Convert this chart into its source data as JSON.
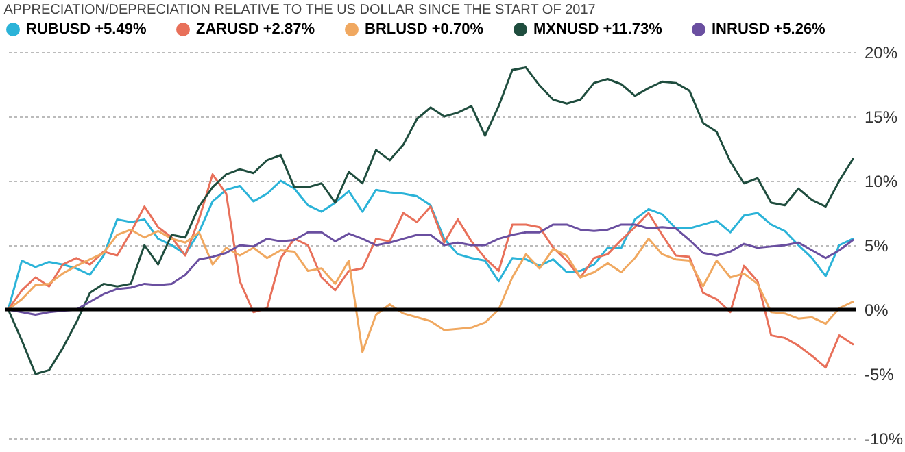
{
  "chart_data": {
    "type": "line",
    "title": "APPRECIATION/DEPRECIATION RELATIVE TO THE US DOLLAR SINCE THE START OF 2017",
    "categories": [
      null,
      null,
      null,
      null,
      null,
      null,
      null,
      null,
      null,
      null,
      null,
      null,
      null,
      null,
      null,
      null,
      null,
      null,
      null,
      null,
      null,
      null,
      null,
      null,
      null,
      null,
      null,
      null,
      null,
      null,
      null,
      null,
      null,
      null,
      null,
      null,
      null,
      null,
      null,
      null,
      null,
      null,
      null,
      null,
      null,
      null,
      null,
      null,
      null,
      null,
      null,
      null,
      null,
      null,
      null,
      null,
      null,
      null,
      null,
      null,
      null,
      null,
      null
    ],
    "series": [
      {
        "name": "RUBUSD +5.49%",
        "color": "#2bb3d8",
        "values": [
          0,
          3.8,
          3.3,
          3.7,
          3.5,
          3.2,
          2.7,
          4.2,
          7,
          6.8,
          7,
          5.5,
          5,
          4.3,
          6,
          8.4,
          9.3,
          9.6,
          8.4,
          9,
          10,
          9.4,
          8.1,
          7.6,
          8.3,
          9.2,
          7.6,
          9.3,
          9.1,
          9,
          8.8,
          8.1,
          5.5,
          4.3,
          4,
          3.8,
          2.2,
          4,
          3.9,
          3.4,
          3.9,
          2.9,
          3,
          3.5,
          4.8,
          4.8,
          7,
          7.8,
          7.4,
          6.3,
          6.3,
          6.6,
          6.9,
          6,
          7.3,
          7.5,
          6.6,
          6.1,
          5,
          4,
          2.6,
          5,
          5.5
        ]
      },
      {
        "name": "ZARUSD +2.87%",
        "color": "#e8705a",
        "values": [
          0,
          1.5,
          2.5,
          1.8,
          3.5,
          4,
          3.5,
          4.5,
          4.2,
          6,
          8,
          6.4,
          5.6,
          4.2,
          7,
          10.5,
          9,
          2.2,
          -0.2,
          0.1,
          4,
          5.5,
          5,
          2.5,
          1.5,
          3,
          3.2,
          5.5,
          5.3,
          7.5,
          6.8,
          8,
          5.2,
          7,
          5.3,
          4,
          3,
          6.6,
          6.6,
          6.4,
          4.8,
          3.8,
          2.5,
          4,
          4.3,
          5.4,
          6.4,
          7.5,
          5.8,
          4.2,
          4.1,
          1.3,
          0.8,
          -0.2,
          3.4,
          2.2,
          -2,
          -2.2,
          -2.8,
          -3.6,
          -4.5,
          -2,
          -2.7
        ]
      },
      {
        "name": "BRLUSD +0.70%",
        "color": "#f0a860",
        "values": [
          0,
          0.8,
          1.9,
          2,
          2.8,
          3.4,
          3.9,
          4.4,
          5.8,
          6.2,
          5.6,
          6.1,
          5.5,
          5.2,
          6,
          3.5,
          4.8,
          4.2,
          4.8,
          4,
          4.6,
          4.5,
          3,
          3.2,
          2,
          3.8,
          -3.3,
          -0.4,
          0.4,
          -0.3,
          -0.6,
          -0.9,
          -1.6,
          -1.5,
          -1.4,
          -1,
          0,
          2.5,
          4.3,
          3.2,
          4.7,
          4.2,
          2.5,
          2.9,
          3.6,
          2.9,
          4,
          5.5,
          4.3,
          3.9,
          3.8,
          1.8,
          3.8,
          2.5,
          2.8,
          2,
          -0.2,
          -0.3,
          -0.7,
          -0.6,
          -1.1,
          0.1,
          0.6
        ]
      },
      {
        "name": "MXNUSD +11.73%",
        "color": "#1f4d3e",
        "values": [
          0,
          -2.4,
          -5,
          -4.7,
          -3,
          -1,
          1.3,
          2,
          1.8,
          2,
          5,
          3.5,
          5.8,
          5.6,
          8,
          9.5,
          10.5,
          10.9,
          10.6,
          11.6,
          12,
          9.5,
          9.5,
          9.8,
          8.3,
          10.7,
          9.8,
          12.4,
          11.6,
          12.8,
          14.8,
          15.7,
          15,
          15.3,
          15.8,
          13.5,
          15.8,
          18.6,
          18.8,
          17.4,
          16.3,
          16,
          16.3,
          17.6,
          17.9,
          17.5,
          16.6,
          17.2,
          17.7,
          17.6,
          17,
          14.5,
          13.8,
          11.5,
          9.8,
          10.2,
          8.3,
          8.1,
          9.4,
          8.5,
          8,
          10,
          11.7
        ]
      },
      {
        "name": "INRUSD +5.26%",
        "color": "#6a4fa0",
        "values": [
          0,
          -0.2,
          -0.4,
          -0.2,
          -0.1,
          0,
          0.6,
          1.2,
          1.6,
          1.7,
          2,
          1.9,
          2,
          2.7,
          3.9,
          4.1,
          4.4,
          5,
          4.9,
          5.5,
          5.3,
          5.4,
          6,
          6,
          5.3,
          5.9,
          5.5,
          5,
          5.2,
          5.5,
          5.8,
          5.8,
          5,
          5.2,
          5,
          5,
          5.5,
          5.8,
          6,
          6,
          6.6,
          6.6,
          6.2,
          6.1,
          6.2,
          6.6,
          6.6,
          6.3,
          6.4,
          6.3,
          5.4,
          4.4,
          4.2,
          4.5,
          5.1,
          4.8,
          4.9,
          5,
          5.2,
          4.6,
          4,
          4.6,
          5.4
        ]
      }
    ],
    "ylim": [
      -10,
      20
    ],
    "yticks": [
      {
        "value": -10,
        "label": "-10%"
      },
      {
        "value": -5,
        "label": "-5%"
      },
      {
        "value": 0,
        "label": "0%"
      },
      {
        "value": 5,
        "label": "5%"
      },
      {
        "value": 10,
        "label": "10%"
      },
      {
        "value": 15,
        "label": "15%"
      },
      {
        "value": 20,
        "label": "20%"
      }
    ],
    "ref_lines": [
      {
        "axis": "y",
        "value": 0,
        "color": "#000000"
      }
    ],
    "grid": "y",
    "legend": "top",
    "tick_labels": "y",
    "line_style": "solid"
  }
}
